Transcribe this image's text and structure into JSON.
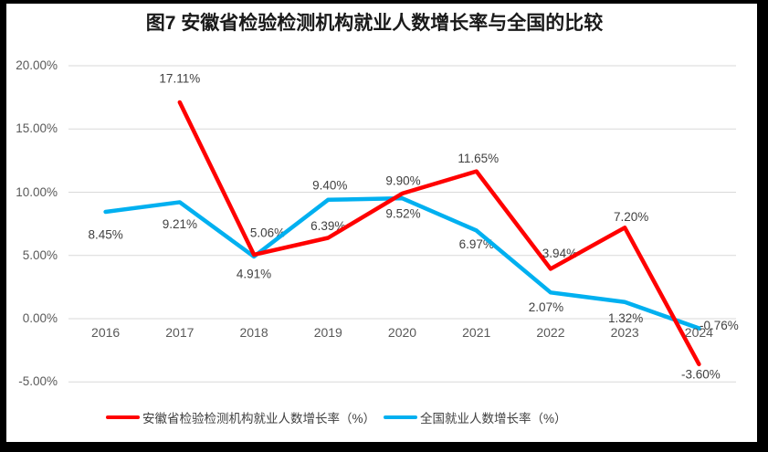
{
  "title": "图7 安徽省检验检测机构就业人数增长率与全国的比较",
  "chart_data": {
    "type": "line",
    "title": "图7 安徽省检验检测机构就业人数增长率与全国的比较",
    "categories": [
      "2016",
      "2017",
      "2018",
      "2019",
      "2020",
      "2021",
      "2022",
      "2023",
      "2024"
    ],
    "series": [
      {
        "name": "安徽省检验检测机构就业人数增长率（%）",
        "color": "#FF0000",
        "values": [
          null,
          17.11,
          5.06,
          6.39,
          9.9,
          11.65,
          3.94,
          7.2,
          -3.6
        ],
        "point_labels": [
          "",
          "17.11%",
          "5.06%",
          "6.39%",
          "9.90%",
          "11.65%",
          "3.94%",
          "7.20%",
          "-3.60%"
        ],
        "label_offsets": [
          [
            0,
            0
          ],
          [
            0,
            -26
          ],
          [
            15,
            -24
          ],
          [
            0,
            -13
          ],
          [
            1,
            -14
          ],
          [
            2,
            -14
          ],
          [
            10,
            -17
          ],
          [
            7,
            -12
          ],
          [
            2,
            11
          ]
        ]
      },
      {
        "name": "全国就业人数增长率（%）",
        "color": "#00B0F0",
        "values": [
          8.45,
          9.21,
          4.91,
          9.4,
          9.52,
          6.97,
          2.07,
          1.32,
          -0.76
        ],
        "point_labels": [
          "8.45%",
          "9.21%",
          "4.91%",
          "9.40%",
          "9.52%",
          "6.97%",
          "2.07%",
          "1.32%",
          "-0.76%"
        ],
        "label_offsets": [
          [
            0,
            25
          ],
          [
            0,
            24
          ],
          [
            0,
            19
          ],
          [
            2,
            -16
          ],
          [
            1,
            17
          ],
          [
            0,
            15
          ],
          [
            -5,
            16
          ],
          [
            1,
            18
          ],
          [
            22,
            -3
          ]
        ]
      }
    ],
    "y_axis": {
      "tick_labels": [
        "20.00%",
        "15.00%",
        "10.00%",
        "5.00%",
        "0.00%",
        "-5.00%"
      ],
      "tick_values": [
        20,
        15,
        10,
        5,
        0,
        -5
      ],
      "min": -5,
      "max": 20
    },
    "xlabel": "",
    "ylabel": "",
    "grid": true,
    "legend_position": "bottom"
  },
  "legend": {
    "items": [
      {
        "label": "安徽省检验检测机构就业人数增长率（%）",
        "color": "#FF0000"
      },
      {
        "label": "全国就业人数增长率（%）",
        "color": "#00B0F0"
      }
    ]
  },
  "colors": {
    "anhui_series": "#FF0000",
    "national_series": "#00B0F0",
    "gridline": "#D9D9D9",
    "axis_text": "#595959",
    "data_label_text": "#404040",
    "title_text": "#1A1A1A",
    "frame": "#000000",
    "background": "#FFFFFF"
  }
}
